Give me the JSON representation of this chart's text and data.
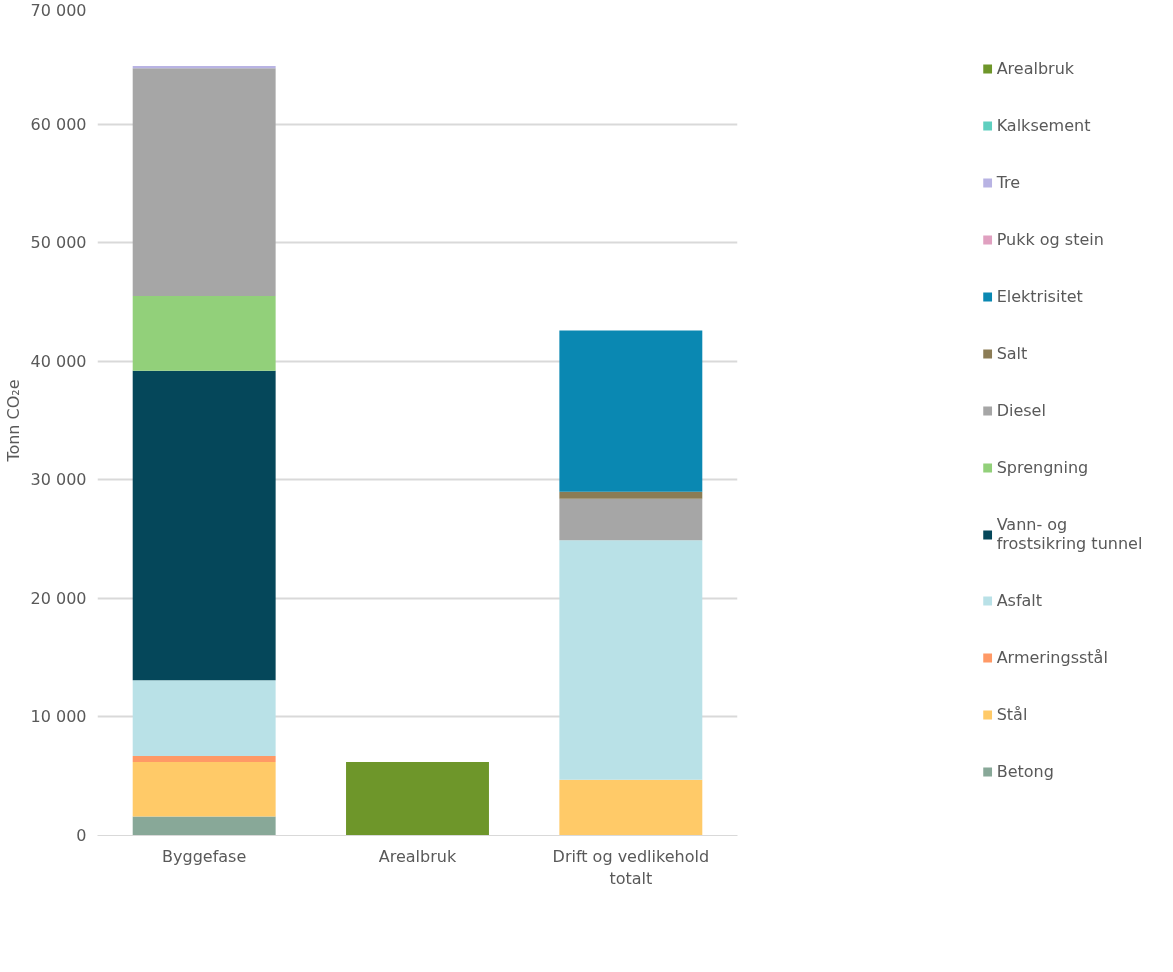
{
  "chart_data": {
    "type": "bar",
    "stacked": true,
    "ylabel": "Tonn CO₂e",
    "categories": [
      "Byggefase",
      "Arealbruk",
      "Drift og vedlikehold totalt"
    ],
    "series": [
      {
        "name": "Betong",
        "color": "#88a898",
        "values": [
          1600,
          0,
          0
        ]
      },
      {
        "name": "Stål",
        "color": "#ffca68",
        "values": [
          4600,
          0,
          4700
        ]
      },
      {
        "name": "Armeringsstål",
        "color": "#ff9966",
        "values": [
          500,
          0,
          0
        ]
      },
      {
        "name": "Asfalt",
        "color": "#b9e1e7",
        "values": [
          6400,
          0,
          20200
        ]
      },
      {
        "name": "Vann- og frostsikring tunnel",
        "color": "#05475a",
        "values": [
          26100,
          0,
          0
        ]
      },
      {
        "name": "Sprengning",
        "color": "#92d07a",
        "values": [
          6300,
          0,
          0
        ]
      },
      {
        "name": "Diesel",
        "color": "#a6a6a6",
        "values": [
          19200,
          0,
          3500
        ]
      },
      {
        "name": "Salt",
        "color": "#8b7c55",
        "values": [
          0,
          0,
          600
        ]
      },
      {
        "name": "Elektrisitet",
        "color": "#0a88b2",
        "values": [
          0,
          0,
          13600
        ]
      },
      {
        "name": "Pukk og stein",
        "color": "#e0a0c0",
        "values": [
          0,
          0,
          0
        ]
      },
      {
        "name": "Tre",
        "color": "#b8b3e3",
        "values": [
          200,
          0,
          0
        ]
      },
      {
        "name": "Kalksement",
        "color": "#5ecfbf",
        "values": [
          0,
          0,
          0
        ]
      },
      {
        "name": "Arealbruk",
        "color": "#6e962a",
        "values": [
          0,
          6200,
          0
        ]
      }
    ],
    "ylim": [
      0,
      70000
    ],
    "yticks": [
      {
        "value": 0,
        "label": "0"
      },
      {
        "value": 10000,
        "label": "10 000"
      },
      {
        "value": 20000,
        "label": "20 000"
      },
      {
        "value": 30000,
        "label": "30 000"
      },
      {
        "value": 40000,
        "label": "40 000"
      },
      {
        "value": 50000,
        "label": "50 000"
      },
      {
        "value": 60000,
        "label": "60 000"
      },
      {
        "value": 70000,
        "label": "70 000"
      }
    ],
    "grid": "y",
    "legend": "right"
  }
}
